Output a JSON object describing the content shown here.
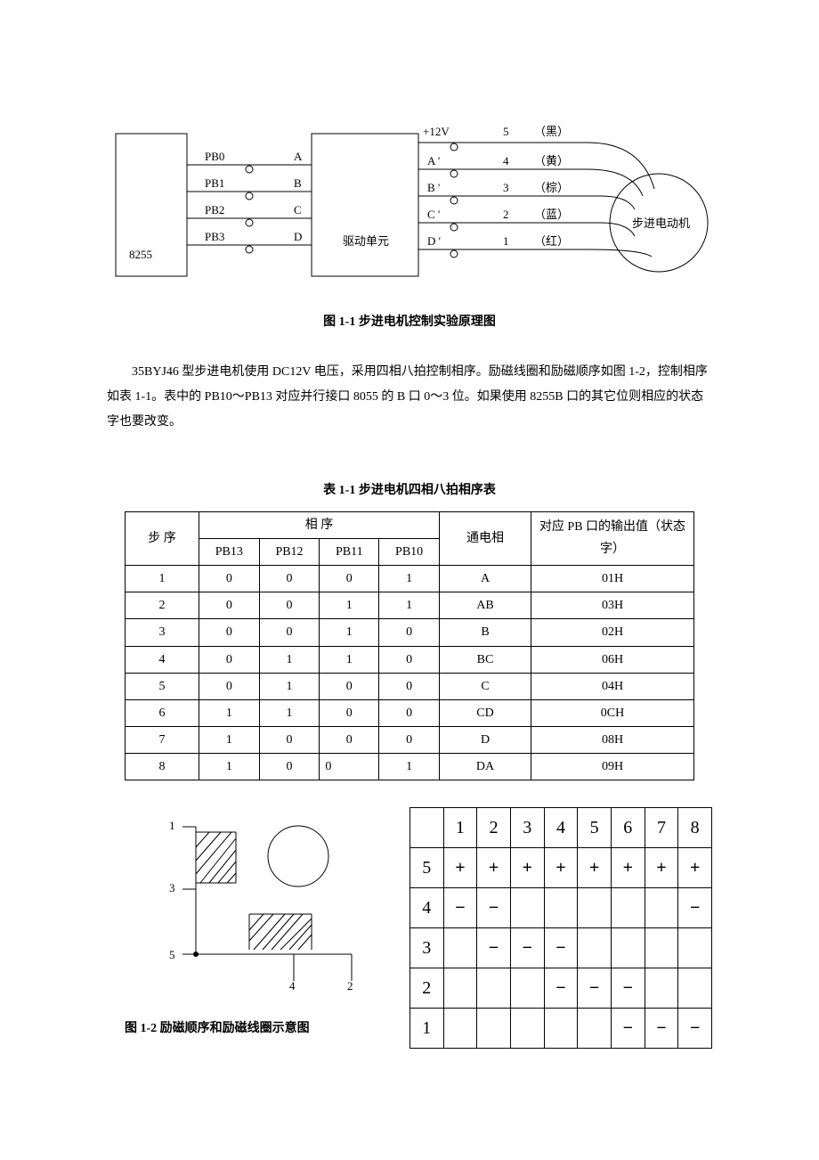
{
  "diagram1": {
    "box_8255": "8255",
    "pb_labels": [
      "PB0",
      "PB1",
      "PB2",
      "PB3"
    ],
    "abcd": [
      "A",
      "B",
      "C",
      "D"
    ],
    "driver_box": "驱动单元",
    "top_v": "+12V",
    "right_nums": [
      "5",
      "4",
      "3",
      "2",
      "1"
    ],
    "right_colors": [
      "（黑）",
      "（黄）",
      "（棕）",
      "（蓝）",
      "（红）"
    ],
    "right_letters_col": [
      "",
      "A '",
      "B '",
      "C '",
      "D '"
    ],
    "motor": "步进电动机",
    "caption": "图 1-1    步进电机控制实验原理图"
  },
  "paragraph_text": "35BYJ46 型步进电机使用 DC12V 电压，采用四相八拍控制相序。励磁线圈和励磁顺序如图 1-2，控制相序如表 1-1。表中的 PB10～PB13 对应并行接口 8055 的 B 口 0～3 位。如果使用 8255B 口的其它位则相应的状态字也要改变。",
  "table1": {
    "title": "表 1-1  步进电机四相八拍相序表",
    "col_step": "步  序",
    "col_phase_group": "相            序",
    "phase_cols": [
      "PB13",
      "PB12",
      "PB11",
      "PB10"
    ],
    "col_energize": "通电相",
    "col_output": "对应 PB 口的输出值（状态字）",
    "rows": [
      {
        "step": "1",
        "b": [
          "0",
          "0",
          "0",
          "1"
        ],
        "ph": "A",
        "out": "01H"
      },
      {
        "step": "2",
        "b": [
          "0",
          "0",
          "1",
          "1"
        ],
        "ph": "AB",
        "out": "03H"
      },
      {
        "step": "3",
        "b": [
          "0",
          "0",
          "1",
          "0"
        ],
        "ph": "B",
        "out": "02H"
      },
      {
        "step": "4",
        "b": [
          "0",
          "1",
          "1",
          "0"
        ],
        "ph": "BC",
        "out": "06H"
      },
      {
        "step": "5",
        "b": [
          "0",
          "1",
          "0",
          "0"
        ],
        "ph": "C",
        "out": "04H"
      },
      {
        "step": "6",
        "b": [
          "1",
          "1",
          "0",
          "0"
        ],
        "ph": "CD",
        "out": "0CH"
      },
      {
        "step": "7",
        "b": [
          "1",
          "0",
          "0",
          "0"
        ],
        "ph": "D",
        "out": "08H"
      },
      {
        "step": "8",
        "b": [
          "1",
          "0",
          "0",
          "1"
        ],
        "ph": "DA",
        "out": "09H"
      }
    ]
  },
  "coil": {
    "pin_labels": [
      "1",
      "3",
      "5",
      "4",
      "2"
    ],
    "caption": "图 1-2    励磁顺序和励磁线圈示意图"
  },
  "seq_grid": {
    "col_headers": [
      "",
      "1",
      "2",
      "3",
      "4",
      "5",
      "6",
      "7",
      "8"
    ],
    "row_labels": [
      "5",
      "4",
      "3",
      "2",
      "1"
    ],
    "cells": [
      [
        "+",
        "+",
        "+",
        "+",
        "+",
        "+",
        "+",
        "+"
      ],
      [
        "−",
        "−",
        "",
        "",
        "",
        "",
        "",
        "−"
      ],
      [
        "",
        "−",
        "−",
        "−",
        "",
        "",
        "",
        ""
      ],
      [
        "",
        "",
        "",
        "−",
        "−",
        "−",
        "",
        ""
      ],
      [
        "",
        "",
        "",
        "",
        "",
        "−",
        "−",
        "−"
      ]
    ]
  },
  "style": {
    "stroke": "#000000",
    "background": "#ffffff"
  }
}
